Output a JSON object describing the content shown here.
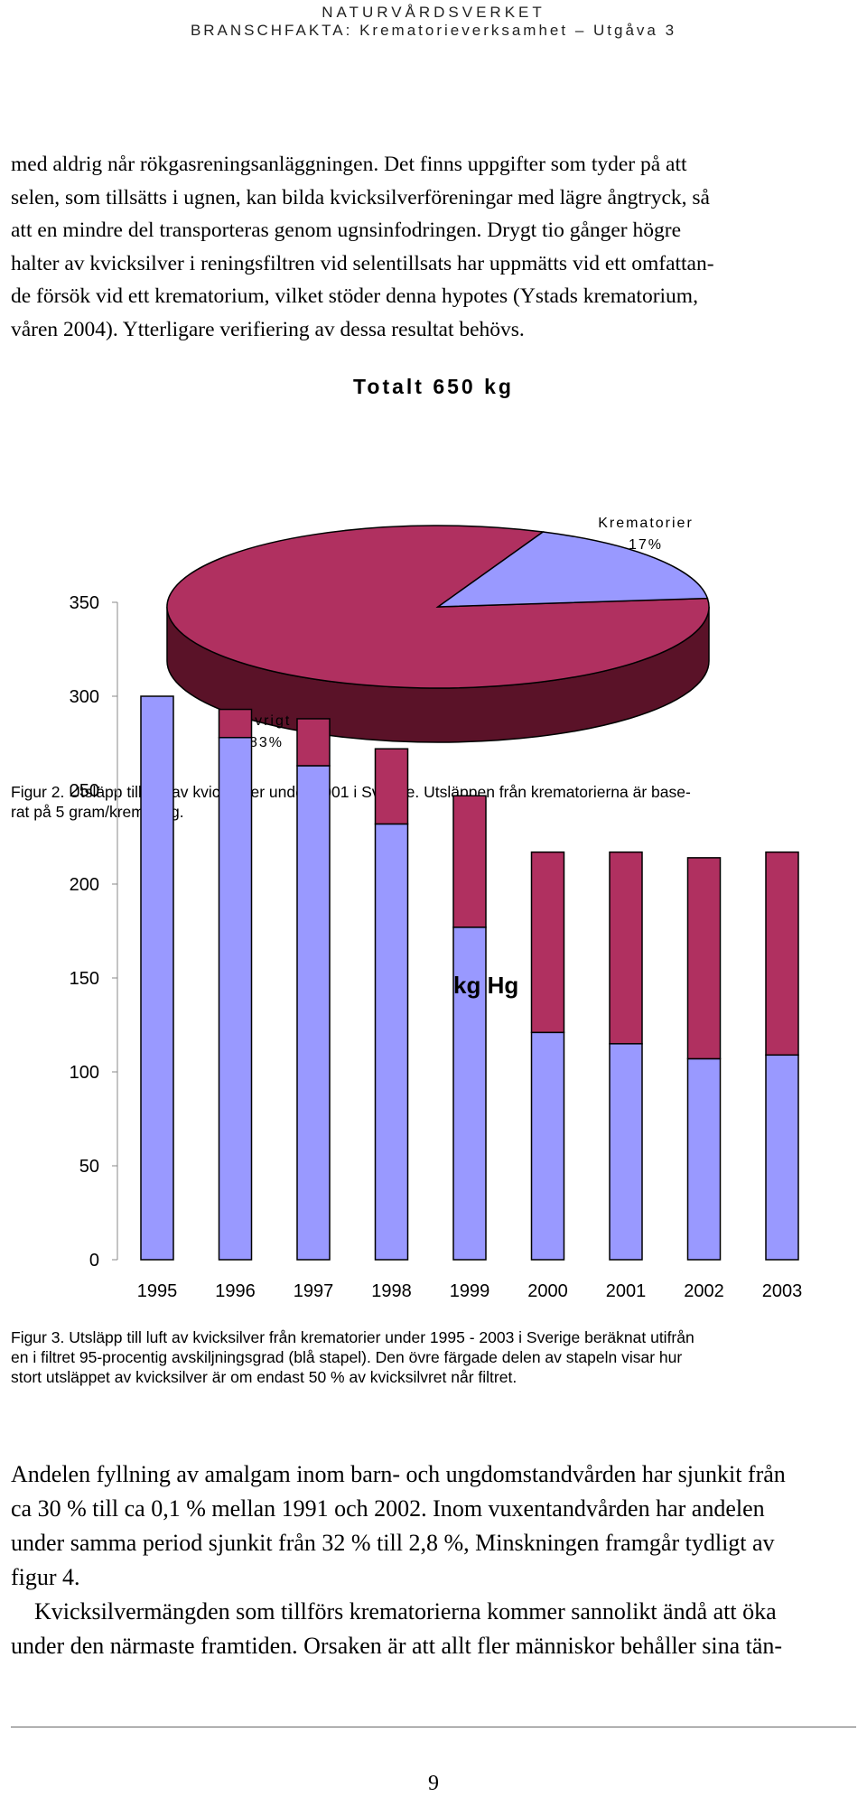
{
  "header": {
    "org": "NATURVÅRDSVERKET",
    "series": "BRANSCHFAKTA: Krematorieverksamhet – Utgåva 3"
  },
  "intro_lines": [
    "med aldrig når rökgasreningsanläggningen. Det finns uppgifter som tyder på att",
    "selen, som tillsätts i ugnen, kan bilda kvicksilverföreningar med lägre ångtryck, så",
    "att en mindre del transporteras genom ugnsinfodringen. Drygt tio gånger högre",
    "halter av kvicksilver i reningsfiltren vid selentillsats har uppmätts vid ett omfattan-",
    "de försök vid ett krematorium, vilket stöder denna hypotes (Ystads krematorium,",
    "våren 2004). Ytterligare verifiering av dessa resultat behövs."
  ],
  "pie_chart": {
    "title": "Totalt 650 kg",
    "krematorier_label": "Krematorier",
    "krematorier_pct": "17%",
    "ovrigt_label": "Övrigt",
    "ovrigt_pct": "83%"
  },
  "figure2_caption_lines": [
    "Figur 2. Utsläpp till luft av kvicksilver under 2001 i Sverige. Utsläppen från krematorierna är base-",
    "rat på 5 gram/kremering."
  ],
  "bar_chart": {
    "unit_label": "kg Hg"
  },
  "figure3_caption_lines": [
    "Figur 3. Utsläpp till luft av kvicksilver från krematorier under 1995 - 2003 i Sverige beräknat utifrån",
    "en i filtret 95-procentig avskiljningsgrad (blå stapel). Den övre färgade delen av stapeln visar hur",
    "stort utsläppet av kvicksilver är om endast 50 % av kvicksilvret når filtret."
  ],
  "body_lines": [
    "Andelen fyllning av amalgam inom barn- och ungdomstandvården har sjunkit från",
    "ca 30 % till ca 0,1 % mellan 1991 och 2002. Inom vuxentandvården har andelen",
    "under samma period sjunkit från 32 % till 2,8 %, Minskningen framgår tydligt av",
    "figur 4.",
    "    Kvicksilvermängden som tillförs krematorierna kommer sannolikt ändå att öka",
    "under den närmaste framtiden. Orsaken är att allt fler människor behåller sina tän-"
  ],
  "page_number": "9",
  "colors": {
    "pie_main": "#b03060",
    "pie_side": "#5a1228",
    "pie_small": "#9999ff",
    "bar_base": "#9999ff",
    "bar_top": "#b03060"
  },
  "chart_data": [
    {
      "type": "pie",
      "title": "Totalt 650 kg",
      "categories": [
        "Krematorier",
        "Övrigt"
      ],
      "values": [
        17,
        83
      ],
      "unit": "%"
    },
    {
      "type": "bar",
      "stacked": true,
      "title": "kg Hg",
      "categories": [
        "1995",
        "1996",
        "1997",
        "1998",
        "1999",
        "2000",
        "2001",
        "2002",
        "2003"
      ],
      "series": [
        {
          "values": [
            300,
            278,
            263,
            232,
            177,
            121,
            115,
            107,
            109
          ]
        },
        {
          "values": [
            0,
            15,
            25,
            40,
            70,
            96,
            102,
            107,
            108
          ]
        }
      ],
      "ylim": [
        0,
        350
      ],
      "yticks": [
        0,
        50,
        100,
        150,
        200,
        250,
        300,
        350
      ],
      "grid": false
    }
  ]
}
